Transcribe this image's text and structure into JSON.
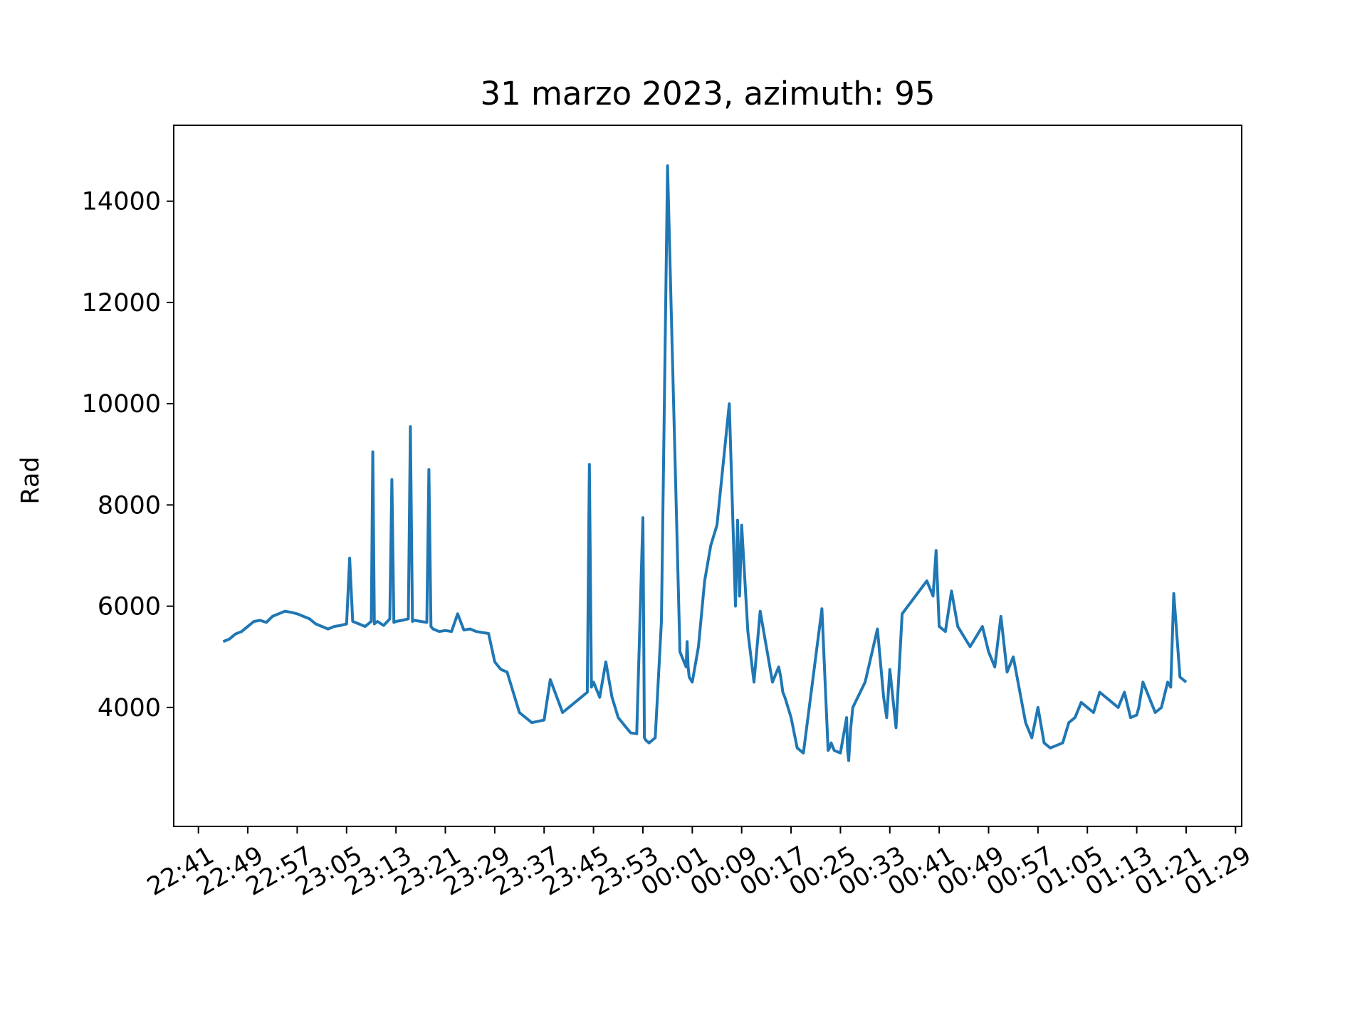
{
  "chart_data": {
    "type": "line",
    "title": "31 marzo 2023, azimuth: 95",
    "xlabel": "",
    "ylabel": "Rad",
    "x_axis_kind": "time",
    "xticks": [
      "22:41",
      "22:49",
      "22:57",
      "23:05",
      "23:13",
      "23:21",
      "23:29",
      "23:37",
      "23:45",
      "23:53",
      "00:01",
      "00:09",
      "00:17",
      "00:25",
      "00:33",
      "00:41",
      "00:49",
      "00:57",
      "01:05",
      "01:13",
      "01:21",
      "01:29"
    ],
    "yticks": [
      4000,
      6000,
      8000,
      10000,
      12000,
      14000
    ],
    "xlim": [
      "22:37",
      "01:30"
    ],
    "ylim": [
      1650,
      15500
    ],
    "grid": false,
    "series": [
      {
        "color": "#1f77b4",
        "x": [
          "22:45",
          "22:46",
          "22:47",
          "22:48",
          "22:49",
          "22:50",
          "22:51",
          "22:52",
          "22:53",
          "22:54",
          "22:55",
          "22:56",
          "22:57",
          "22:58",
          "22:59",
          "23:00",
          "23:01",
          "23:02",
          "23:03",
          "23:04",
          "23:05",
          "23:05:30",
          "23:06",
          "23:07",
          "23:08",
          "23:09",
          "23:09:15",
          "23:09:30",
          "23:10",
          "23:11",
          "23:12",
          "23:12:20",
          "23:12:40",
          "23:13",
          "23:14",
          "23:15",
          "23:15:20",
          "23:15:40",
          "23:16",
          "23:17",
          "23:18",
          "23:18:20",
          "23:18:40",
          "23:19",
          "23:20",
          "23:21",
          "23:22",
          "23:23",
          "23:24",
          "23:25",
          "23:26",
          "23:27",
          "23:28",
          "23:29",
          "23:30",
          "23:31",
          "23:33",
          "23:35",
          "23:37",
          "23:38",
          "23:40",
          "23:43",
          "23:44",
          "23:44:20",
          "23:44:40",
          "23:45",
          "23:46",
          "23:47",
          "23:48",
          "23:49",
          "23:50",
          "23:51",
          "23:52",
          "23:53",
          "23:53:15",
          "23:53:30",
          "23:54",
          "23:55",
          "23:56",
          "23:57",
          "23:59",
          "00:00",
          "00:00:10",
          "00:00:20",
          "00:00:30",
          "00:01",
          "00:02",
          "00:03",
          "00:04",
          "00:05",
          "00:07",
          "00:08",
          "00:08:20",
          "00:08:40",
          "00:09",
          "00:10",
          "00:11",
          "00:12",
          "00:14",
          "00:15",
          "00:15:20",
          "00:15:40",
          "00:16",
          "00:17",
          "00:18",
          "00:19",
          "00:22",
          "00:23",
          "00:23:15",
          "00:23:30",
          "00:24",
          "00:25",
          "00:26",
          "00:26:10",
          "00:26:20",
          "00:26:40",
          "00:27",
          "00:29",
          "00:31",
          "00:32",
          "00:32:30",
          "00:33",
          "00:34",
          "00:35",
          "00:39",
          "00:40",
          "00:40:30",
          "00:41",
          "00:42",
          "00:43",
          "00:44",
          "00:46",
          "00:47",
          "00:48",
          "00:49",
          "00:50",
          "00:51",
          "00:52",
          "00:53",
          "00:55",
          "00:56",
          "00:57",
          "00:58",
          "00:59",
          "01:01",
          "01:02",
          "01:03",
          "01:04",
          "01:05",
          "01:06",
          "01:07",
          "01:10",
          "01:11",
          "01:12",
          "01:13",
          "01:13:20",
          "01:14",
          "01:16",
          "01:17",
          "01:18",
          "01:18:30",
          "01:19",
          "01:20",
          "01:21"
        ],
        "y": [
          5300,
          5350,
          5450,
          5500,
          5600,
          5700,
          5720,
          5680,
          5800,
          5850,
          5900,
          5880,
          5850,
          5800,
          5750,
          5650,
          5600,
          5550,
          5600,
          5620,
          5650,
          6950,
          5700,
          5650,
          5600,
          5700,
          9050,
          5650,
          5700,
          5620,
          5750,
          8500,
          5680,
          5700,
          5720,
          5750,
          9550,
          5700,
          5720,
          5700,
          5680,
          8700,
          5600,
          5550,
          5500,
          5520,
          5500,
          5850,
          5530,
          5550,
          5500,
          5480,
          5460,
          4900,
          4750,
          4700,
          3900,
          3700,
          3750,
          4550,
          3900,
          4200,
          4300,
          8800,
          4400,
          4500,
          4200,
          4900,
          4200,
          3800,
          3650,
          3500,
          3480,
          7750,
          3400,
          3350,
          3300,
          3400,
          5700,
          14700,
          5100,
          4800,
          5300,
          4800,
          4600,
          4500,
          5200,
          6500,
          7200,
          7600,
          10000,
          6000,
          7700,
          6200,
          7600,
          5500,
          4500,
          5900,
          4500,
          4800,
          4600,
          4300,
          4200,
          3800,
          3200,
          3100,
          5950,
          3150,
          3200,
          3300,
          3150,
          3100,
          3800,
          3150,
          2950,
          3600,
          4000,
          4500,
          5550,
          4200,
          3800,
          4750,
          3600,
          5850,
          6500,
          6200,
          7100,
          5600,
          5500,
          6300,
          5600,
          5200,
          5400,
          5600,
          5100,
          4800,
          5800,
          4700,
          5000,
          3700,
          3400,
          4000,
          3300,
          3200,
          3300,
          3700,
          3800,
          4100,
          4000,
          3900,
          4300,
          4000,
          4300,
          3800,
          3850,
          4000,
          4500,
          3900,
          4000,
          4500,
          4400,
          6250,
          4600,
          4500
        ]
      }
    ]
  }
}
